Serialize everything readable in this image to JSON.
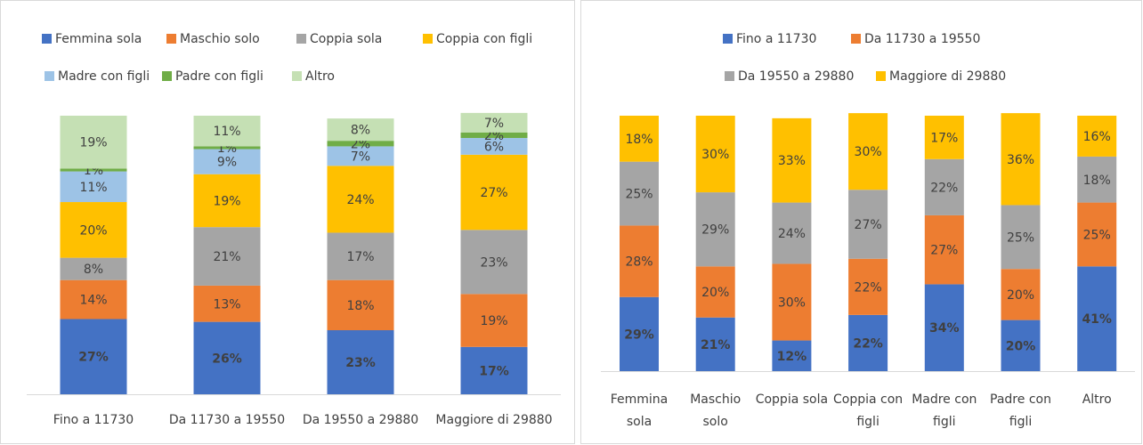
{
  "chart_data": [
    {
      "type": "stacked_bar",
      "categories": [
        "Fino a 11730",
        "Da 11730 a 19550",
        "Da 19550 a 29880",
        "Maggiore di 29880"
      ],
      "ylim": [
        0,
        100
      ],
      "series": [
        {
          "name": "Femmina sola",
          "color": "#4472c4",
          "values": [
            27,
            26,
            23,
            17
          ],
          "value_labels": [
            "27%",
            "26%",
            "23%",
            "17%"
          ]
        },
        {
          "name": "Maschio solo",
          "color": "#ed7d31",
          "values": [
            14,
            13,
            18,
            19
          ],
          "value_labels": [
            "14%",
            "13%",
            "18%",
            "19%"
          ]
        },
        {
          "name": "Coppia sola",
          "color": "#a5a5a5",
          "values": [
            8,
            21,
            17,
            23
          ],
          "value_labels": [
            "8%",
            "21%",
            "17%",
            "23%"
          ]
        },
        {
          "name": "Coppia con figli",
          "color": "#ffc000",
          "values": [
            20,
            19,
            24,
            27
          ],
          "value_labels": [
            "20%",
            "19%",
            "24%",
            "27%"
          ]
        },
        {
          "name": "Madre con figli",
          "color": "#9dc3e6",
          "values": [
            11,
            9,
            7,
            6
          ],
          "value_labels": [
            "11%",
            "9%",
            "7%",
            "6%"
          ]
        },
        {
          "name": "Padre con figli",
          "color": "#70ad47",
          "values": [
            1,
            1,
            2,
            2
          ],
          "value_labels": [
            "1%",
            "1%",
            "2%",
            "2%"
          ]
        },
        {
          "name": "Altro",
          "color": "#c5e0b4",
          "values": [
            19,
            11,
            8,
            7
          ],
          "value_labels": [
            "19%",
            "11%",
            "8%",
            "7%"
          ]
        }
      ]
    },
    {
      "type": "stacked_bar",
      "categories": [
        "Femmina sola",
        "Maschio solo",
        "Coppia sola",
        "Coppia con figli",
        "Madre con figli",
        "Padre con figli",
        "Altro"
      ],
      "ylim": [
        0,
        100
      ],
      "series": [
        {
          "name": "Fino a 11730",
          "color": "#4472c4",
          "values": [
            29,
            21,
            12,
            22,
            34,
            20,
            41
          ],
          "value_labels": [
            "29%",
            "21%",
            "12%",
            "22%",
            "34%",
            "20%",
            "41%"
          ]
        },
        {
          "name": "Da 11730 a 19550",
          "color": "#ed7d31",
          "values": [
            28,
            20,
            30,
            22,
            27,
            20,
            25
          ],
          "value_labels": [
            "28%",
            "20%",
            "30%",
            "22%",
            "27%",
            "20%",
            "25%"
          ]
        },
        {
          "name": "Da 19550 a 29880",
          "color": "#a5a5a5",
          "values": [
            25,
            29,
            24,
            27,
            22,
            25,
            18
          ],
          "value_labels": [
            "25%",
            "29%",
            "24%",
            "27%",
            "22%",
            "25%",
            "18%"
          ]
        },
        {
          "name": "Maggiore di 29880",
          "color": "#ffc000",
          "values": [
            18,
            30,
            33,
            30,
            17,
            36,
            16
          ],
          "value_labels": [
            "18%",
            "30%",
            "33%",
            "30%",
            "17%",
            "36%",
            "16%"
          ]
        }
      ]
    }
  ]
}
